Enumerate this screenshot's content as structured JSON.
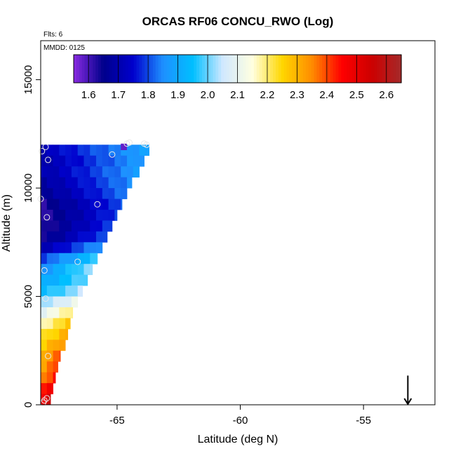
{
  "chart_data": {
    "type": "heatmap",
    "title": "ORCAS RF06 CONCU_RWO (Log)",
    "subtitle_flights": "Flts: 6",
    "subtitle_date": "MMDD: 0125",
    "xlabel": "Latitude (deg N)",
    "ylabel": "Altitude (m)",
    "xlim": [
      -68.1,
      -52.1
    ],
    "ylim": [
      0,
      16800
    ],
    "x_ticks": [
      -65,
      -60,
      -55
    ],
    "x_tick_labels": [
      "-65",
      "-60",
      "-55"
    ],
    "y_ticks": [
      0,
      5000,
      10000,
      15000
    ],
    "y_tick_labels": [
      "0",
      "5000",
      "10000",
      "15000"
    ],
    "colorbar": {
      "min": 1.55,
      "max": 2.65,
      "ticks": [
        1.6,
        1.7,
        1.8,
        1.9,
        2.0,
        2.1,
        2.2,
        2.3,
        2.4,
        2.5,
        2.6
      ],
      "tick_labels": [
        "1.6",
        "1.7",
        "1.8",
        "1.9",
        "2.0",
        "2.1",
        "2.2",
        "2.3",
        "2.4",
        "2.5",
        "2.6"
      ],
      "colors": [
        "#8a2be2",
        "#00008b",
        "#0000cd",
        "#1e90ff",
        "#00bfff",
        "#d0e8ff",
        "#ffffe0",
        "#ffd700",
        "#ff8c00",
        "#ff0000",
        "#cd0000",
        "#a52a2a"
      ]
    },
    "heatmap_grid": {
      "x_start": -68.1,
      "x_step": 0.25,
      "y_step": 500,
      "rows": [
        {
          "alt": 11750,
          "xmax": -63.7,
          "base": 1.72
        },
        {
          "alt": 11250,
          "xmax": -63.9,
          "base": 1.7
        },
        {
          "alt": 10750,
          "xmax": -64.1,
          "base": 1.7
        },
        {
          "alt": 10250,
          "xmax": -64.4,
          "base": 1.68
        },
        {
          "alt": 9750,
          "xmax": -64.6,
          "base": 1.66
        },
        {
          "alt": 9250,
          "xmax": -64.8,
          "base": 1.63
        },
        {
          "alt": 8750,
          "xmax": -65.0,
          "base": 1.62
        },
        {
          "alt": 8250,
          "xmax": -65.2,
          "base": 1.62
        },
        {
          "alt": 7750,
          "xmax": -65.4,
          "base": 1.64
        },
        {
          "alt": 7250,
          "xmax": -65.6,
          "base": 1.7
        },
        {
          "alt": 6750,
          "xmax": -65.8,
          "base": 1.8
        },
        {
          "alt": 6250,
          "xmax": -66.0,
          "base": 1.86
        },
        {
          "alt": 5750,
          "xmax": -66.2,
          "base": 1.9
        },
        {
          "alt": 5250,
          "xmax": -66.4,
          "base": 1.94
        },
        {
          "alt": 4750,
          "xmax": -66.6,
          "base": 2.02
        },
        {
          "alt": 4250,
          "xmax": -66.8,
          "base": 2.1
        },
        {
          "alt": 3750,
          "xmax": -66.9,
          "base": 2.17
        },
        {
          "alt": 3250,
          "xmax": -67.0,
          "base": 2.22
        },
        {
          "alt": 2750,
          "xmax": -67.1,
          "base": 2.26
        },
        {
          "alt": 2250,
          "xmax": -67.3,
          "base": 2.3
        },
        {
          "alt": 1750,
          "xmax": -67.4,
          "base": 2.33
        },
        {
          "alt": 1250,
          "xmax": -67.5,
          "base": 2.36
        },
        {
          "alt": 750,
          "xmax": -67.6,
          "base": 2.42
        },
        {
          "alt": 250,
          "xmax": -67.7,
          "base": 2.48
        }
      ]
    },
    "observation_points": [
      {
        "x": -67.9,
        "y": 11900
      },
      {
        "x": -68.05,
        "y": 11700
      },
      {
        "x": -67.8,
        "y": 11300
      },
      {
        "x": -65.2,
        "y": 11550
      },
      {
        "x": -64.6,
        "y": 12050
      },
      {
        "x": -64.5,
        "y": 12100
      },
      {
        "x": -63.9,
        "y": 12050
      },
      {
        "x": -63.8,
        "y": 12000
      },
      {
        "x": -68.1,
        "y": 9500
      },
      {
        "x": -67.85,
        "y": 8650
      },
      {
        "x": -65.8,
        "y": 9250
      },
      {
        "x": -66.6,
        "y": 6600
      },
      {
        "x": -67.95,
        "y": 6200
      },
      {
        "x": -67.9,
        "y": 4900
      },
      {
        "x": -67.8,
        "y": 2250
      },
      {
        "x": -67.85,
        "y": 300
      },
      {
        "x": -67.95,
        "y": 200
      },
      {
        "x": -68.0,
        "y": 100
      }
    ],
    "annotation": {
      "type": "arrow-down",
      "x": -53.2,
      "y_top": 700,
      "y_bottom": 0
    },
    "grid": false
  }
}
